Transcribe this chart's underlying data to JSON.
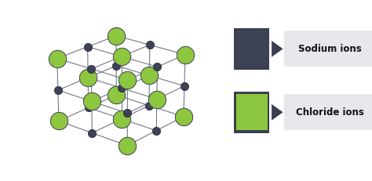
{
  "background_color": "#ffffff",
  "crystal_bg": "#ffffff",
  "sodium_color": "#3d4355",
  "chloride_color": "#8dc63f",
  "chloride_edge": "#3d4355",
  "line_color": "#5a6070",
  "sodium_size_3d": 55,
  "chloride_size_3d": 260,
  "legend_sodium_label": "Sodium ions",
  "legend_chloride_label": "Chloride ions",
  "legend_text_bg": "#e8e8ec",
  "legend_text_color": "#111111",
  "figsize": [
    4.74,
    2.31
  ],
  "dpi": 100,
  "elev": 22,
  "azim": -50
}
